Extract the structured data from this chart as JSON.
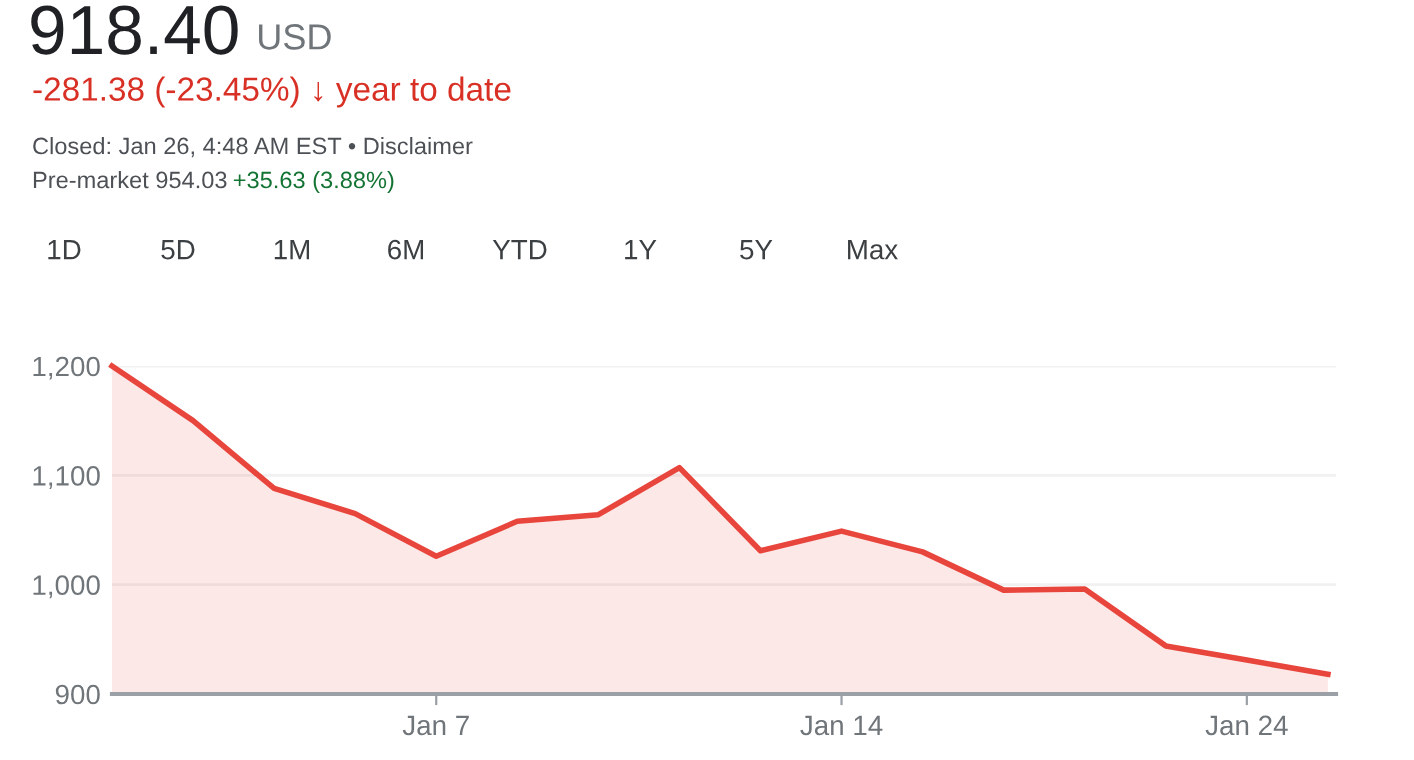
{
  "chart_data": {
    "type": "area",
    "title": "918.40",
    "subtitle": "USD",
    "annotations": [
      "-281.38 (-23.45%) ↓ year to date",
      "Closed: Jan 26, 4:48 AM EST • Disclaimer",
      "Pre-market 954.03",
      "+35.63 (3.88%)",
      "1D",
      "5D",
      "1M",
      "6M",
      "YTD",
      "1Y",
      "5Y",
      "Max"
    ],
    "categories": [
      null,
      null,
      null,
      null,
      "Jan 7",
      null,
      null,
      null,
      null,
      "Jan 14",
      null,
      null,
      null,
      null,
      "Jan 24",
      null
    ],
    "series": [
      {
        "color": "#e8453c",
        "values": [
          1200,
          1150,
          1088,
          1065,
          1026,
          1058,
          1064,
          1107,
          1031,
          1049,
          1030,
          995,
          996,
          944,
          931,
          918
        ]
      }
    ],
    "ylim": [
      900,
      1200
    ],
    "yticks": [
      {
        "value": 900,
        "label": "900"
      },
      {
        "value": 1000,
        "label": "1,000"
      },
      {
        "value": 1100,
        "label": "1,100"
      },
      {
        "value": 1200,
        "label": "1,200"
      }
    ],
    "grid": "y",
    "legend": false
  }
}
